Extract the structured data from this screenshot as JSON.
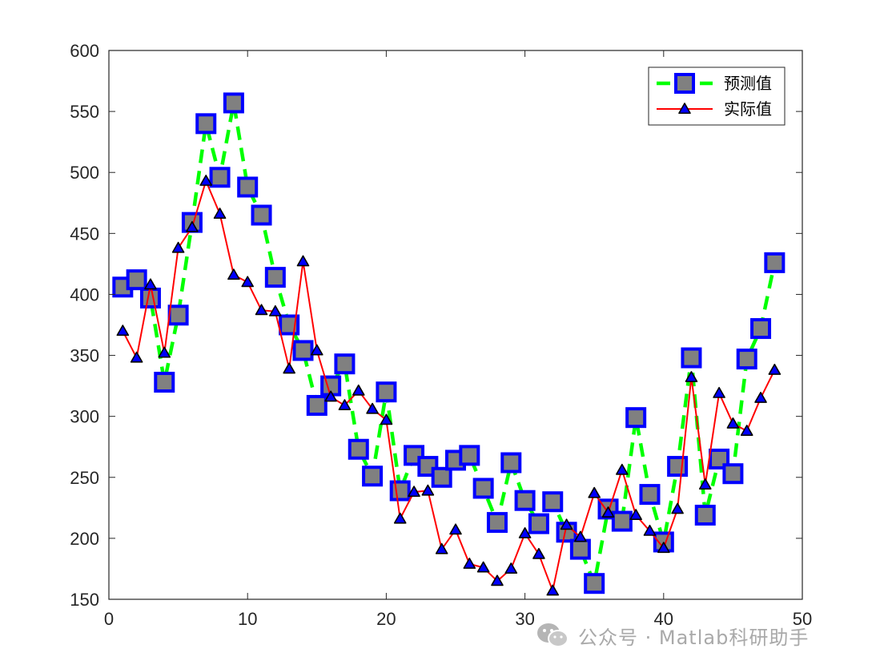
{
  "chart_data": {
    "type": "line",
    "title": "",
    "xlabel": "",
    "ylabel": "",
    "xlim": [
      0,
      50
    ],
    "ylim": [
      150,
      600
    ],
    "xticks": [
      0,
      10,
      20,
      30,
      40,
      50
    ],
    "yticks": [
      150,
      200,
      250,
      300,
      350,
      400,
      450,
      500,
      550,
      600
    ],
    "grid": false,
    "legend_position": "top-right",
    "x": [
      1,
      2,
      3,
      4,
      5,
      6,
      7,
      8,
      9,
      10,
      11,
      12,
      13,
      14,
      15,
      16,
      17,
      18,
      19,
      20,
      21,
      22,
      23,
      24,
      25,
      26,
      27,
      28,
      29,
      30,
      31,
      32,
      33,
      34,
      35,
      36,
      37,
      38,
      39,
      40,
      41,
      42,
      43,
      44,
      45,
      46,
      47,
      48
    ],
    "series": [
      {
        "name": "预测值",
        "color": "#00ff00",
        "marker": "square",
        "marker_edge": "#0000ff",
        "marker_face": "#808080",
        "linestyle": "dashed",
        "values": [
          406,
          412,
          397,
          328,
          383,
          459,
          540,
          496,
          557,
          488,
          465,
          414,
          375,
          354,
          309,
          325,
          343,
          273,
          251,
          320,
          239,
          268,
          259,
          250,
          264,
          268,
          241,
          213,
          262,
          231,
          212,
          230,
          205,
          191,
          163,
          224,
          214,
          299,
          236,
          197,
          259,
          348,
          219,
          265,
          253,
          347,
          372,
          426
        ]
      },
      {
        "name": "实际值",
        "color": "#ff0000",
        "marker": "triangle",
        "marker_edge": "#000000",
        "marker_face": "#0000ff",
        "linestyle": "solid",
        "values": [
          370,
          348,
          408,
          352,
          438,
          455,
          493,
          466,
          416,
          410,
          387,
          386,
          339,
          427,
          354,
          316,
          309,
          321,
          306,
          297,
          216,
          238,
          239,
          191,
          207,
          179,
          176,
          165,
          175,
          204,
          187,
          157,
          211,
          201,
          237,
          221,
          256,
          219,
          206,
          192,
          224,
          332,
          244,
          319,
          294,
          288,
          315,
          338
        ]
      }
    ]
  },
  "watermark": {
    "text": "公众号 · Matlab科研助手",
    "icon": "wechat-icon"
  }
}
